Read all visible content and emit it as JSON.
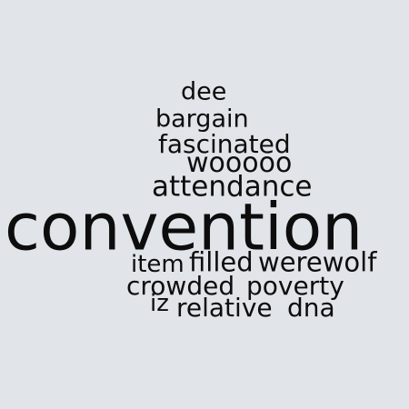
{
  "word_cloud": {
    "text_color": "#0d0d0d",
    "background_color": "#e1e4e8",
    "words": [
      {
        "id": "dee",
        "text": "dee"
      },
      {
        "id": "bargain",
        "text": "bargain"
      },
      {
        "id": "fascinated",
        "text": "fascinated"
      },
      {
        "id": "wooooo",
        "text": "wooooo"
      },
      {
        "id": "attendance",
        "text": "attendance"
      },
      {
        "id": "convention",
        "text": "convention"
      },
      {
        "id": "item",
        "text": "item"
      },
      {
        "id": "filled",
        "text": "filled"
      },
      {
        "id": "werewolf",
        "text": "werewolf"
      },
      {
        "id": "crowded",
        "text": "crowded"
      },
      {
        "id": "poverty",
        "text": "poverty"
      },
      {
        "id": "iz",
        "text": "iz"
      },
      {
        "id": "relative",
        "text": "relative"
      },
      {
        "id": "dna",
        "text": "dna"
      }
    ]
  }
}
